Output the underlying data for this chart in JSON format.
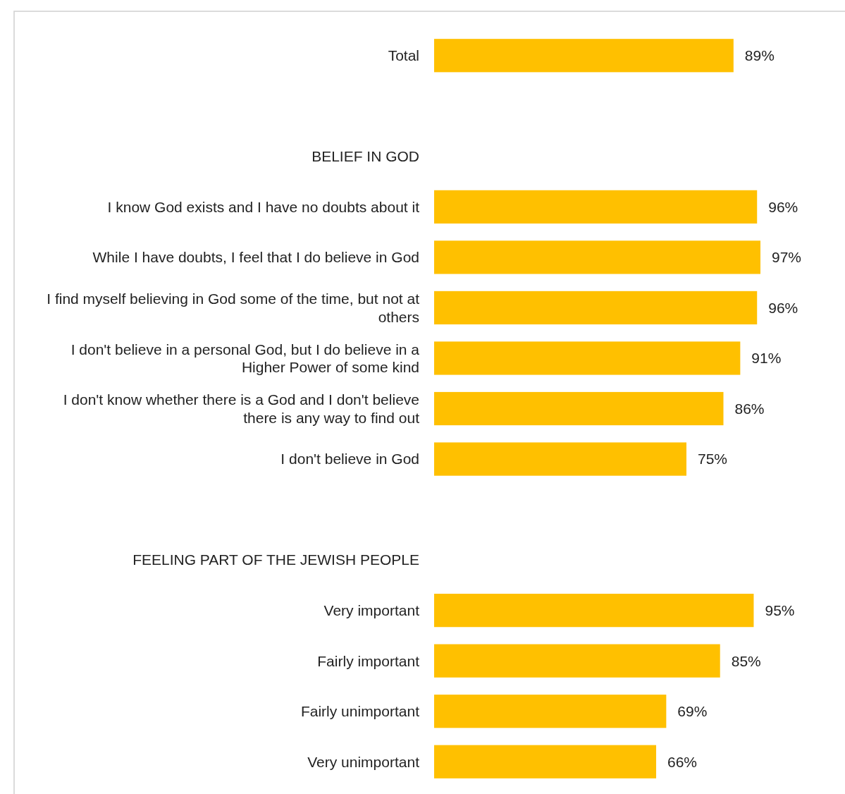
{
  "chart_data": {
    "type": "bar",
    "orientation": "horizontal",
    "categories": [
      "Total",
      null,
      "BELIEF IN GOD",
      "I know God exists and I have no doubts about it",
      "While I have doubts, I feel that I do believe in God",
      "I find myself believing in God some of the time, but not at others",
      "I don't believe in a personal God, but I do believe in a Higher Power of some kind",
      "I don't know whether there is a God and I don't believe there is any way to find out",
      "I don't believe in God",
      null,
      "FEELING PART OF THE JEWISH PEOPLE",
      "Very important",
      "Fairly important",
      "Fairly unimportant",
      "Very unimportant"
    ],
    "values": [
      89,
      null,
      null,
      96,
      97,
      96,
      91,
      86,
      75,
      null,
      null,
      95,
      85,
      69,
      66
    ],
    "value_labels": [
      "89%",
      null,
      null,
      "96%",
      "97%",
      "96%",
      "91%",
      "86%",
      "75%",
      null,
      null,
      "95%",
      "85%",
      "69%",
      "66%"
    ],
    "color": "#ffc000"
  }
}
